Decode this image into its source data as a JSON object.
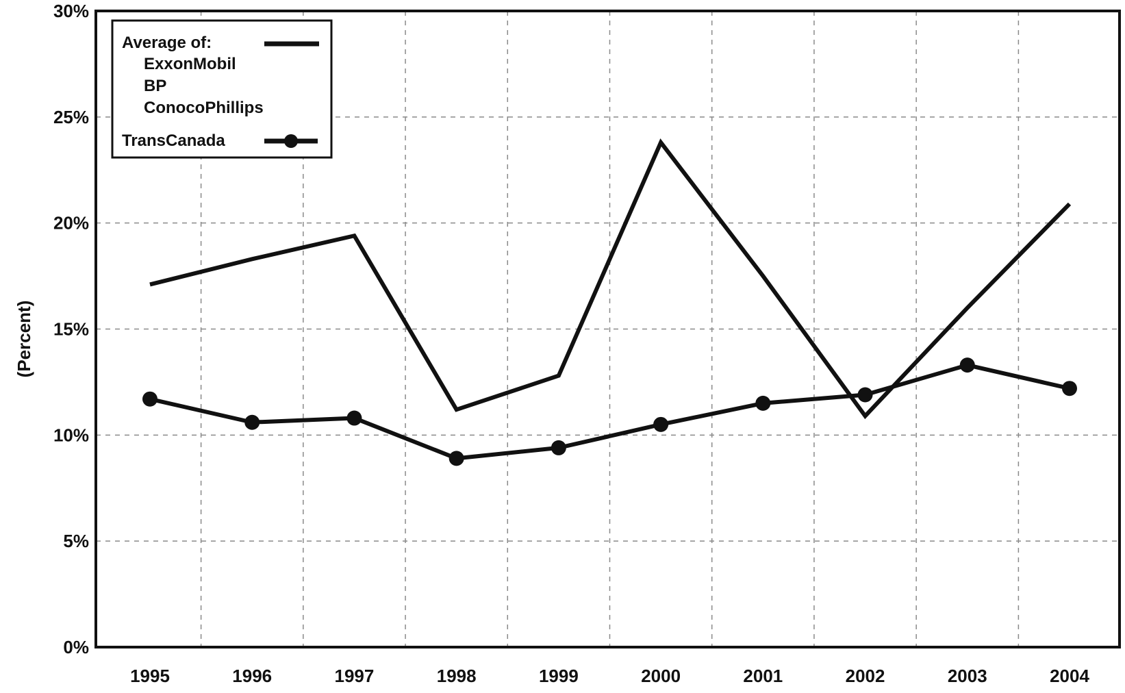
{
  "chart_data": {
    "type": "line",
    "title": "",
    "xlabel": "",
    "ylabel": "(Percent)",
    "x": [
      "1995",
      "1996",
      "1997",
      "1998",
      "1999",
      "2000",
      "2001",
      "2002",
      "2003",
      "2004"
    ],
    "ylim": [
      0,
      30
    ],
    "yticks": [
      "0%",
      "5%",
      "10%",
      "15%",
      "20%",
      "25%",
      "30%"
    ],
    "grid": true,
    "legend_position": "top-left",
    "series": [
      {
        "name": "Average of:",
        "members": [
          "ExxonMobil",
          "BP",
          "ConocoPhillips"
        ],
        "values": [
          17.1,
          18.3,
          19.4,
          11.2,
          12.8,
          23.8,
          17.5,
          10.9,
          16.0,
          20.9
        ],
        "marker": "none",
        "color": "#111111"
      },
      {
        "name": "TransCanada",
        "values": [
          11.7,
          10.6,
          10.8,
          8.9,
          9.4,
          10.5,
          11.5,
          11.9,
          13.3,
          12.2
        ],
        "marker": "circle",
        "color": "#111111"
      }
    ]
  }
}
